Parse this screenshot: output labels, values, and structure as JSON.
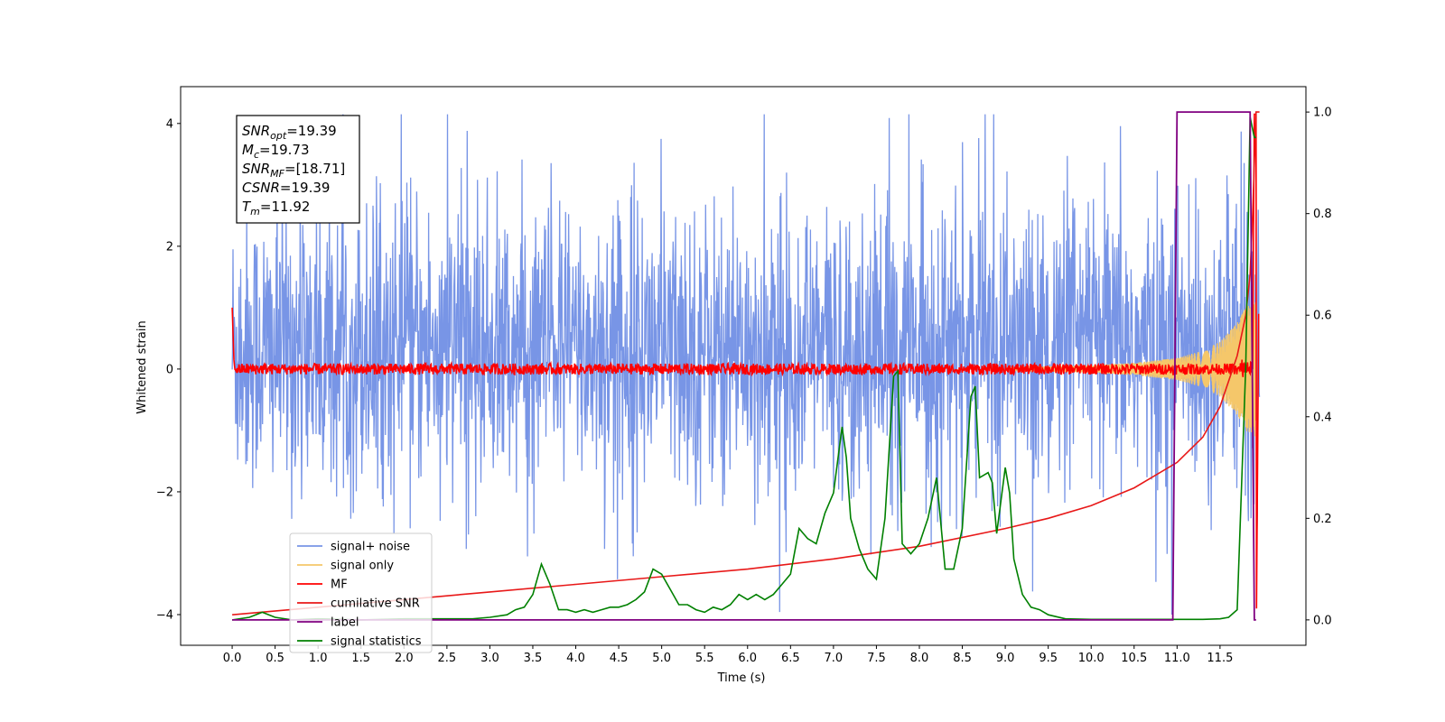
{
  "chart_data": {
    "type": "line",
    "title": "",
    "xlabel": "Time (s)",
    "ylabel": "Whitened strain",
    "xlim": [
      -0.6,
      12.5
    ],
    "ylim": [
      -4.5,
      4.6
    ],
    "y2lim": [
      -0.05,
      1.05
    ],
    "grid": false,
    "legend_position": "lower-left",
    "x_ticks": [
      "0.0",
      "0.5",
      "1.0",
      "1.5",
      "2.0",
      "2.5",
      "3.0",
      "3.5",
      "4.0",
      "4.5",
      "5.0",
      "5.5",
      "6.0",
      "6.5",
      "7.0",
      "7.5",
      "8.0",
      "8.5",
      "9.0",
      "9.5",
      "10.0",
      "10.5",
      "11.0",
      "11.5"
    ],
    "y_ticks": [
      "4",
      "2",
      "0",
      "−2",
      "−4"
    ],
    "y2_ticks": [
      "1.0",
      "0.8",
      "0.6",
      "0.4",
      "0.2",
      "0.0"
    ],
    "colors": {
      "noise": "#7895e6",
      "signal": "#f5c76a",
      "mf": "#ff0000",
      "csnr": "#e81818",
      "label": "#800080",
      "stats": "#008000"
    },
    "annotation": [
      {
        "base": "SNR",
        "sub": "opt",
        "value": "=19.39"
      },
      {
        "base": "M",
        "sub": "c",
        "value": "=19.73"
      },
      {
        "base": "SNR",
        "sub": "MF",
        "value": "=[18.71]"
      },
      {
        "base": "CSNR",
        "sub": "",
        "value": "=19.39"
      },
      {
        "base": "T",
        "sub": "m",
        "value": "=11.92"
      }
    ],
    "legend": [
      "signal+ noise",
      "signal only",
      "MF",
      "cumilative SNR",
      "label",
      "signal statistics"
    ],
    "series": {
      "label": {
        "name": "label",
        "axis": "right",
        "x": [
          0.0,
          10.95,
          11.0,
          11.85,
          11.9,
          11.92
        ],
        "y": [
          0.0,
          0.0,
          1.0,
          1.0,
          0.0,
          0.0
        ]
      },
      "cumulative_snr": {
        "name": "cumilative SNR",
        "axis": "right",
        "x": [
          0.0,
          1.0,
          2.0,
          3.0,
          4.0,
          5.0,
          6.0,
          7.0,
          8.0,
          9.0,
          9.5,
          10.0,
          10.5,
          11.0,
          11.3,
          11.5,
          11.7,
          11.8,
          11.85,
          11.88,
          11.92,
          11.96
        ],
        "y": [
          0.01,
          0.025,
          0.04,
          0.055,
          0.07,
          0.085,
          0.1,
          0.12,
          0.145,
          0.18,
          0.2,
          0.225,
          0.26,
          0.31,
          0.36,
          0.42,
          0.52,
          0.6,
          0.68,
          0.8,
          1.0,
          1.0
        ]
      },
      "signal_statistics": {
        "name": "signal statistics",
        "axis": "right",
        "x": [
          0.0,
          0.2,
          0.35,
          0.5,
          0.7,
          1.0,
          1.5,
          2.0,
          2.5,
          2.8,
          3.0,
          3.2,
          3.3,
          3.4,
          3.5,
          3.6,
          3.7,
          3.8,
          3.9,
          4.0,
          4.1,
          4.2,
          4.3,
          4.4,
          4.5,
          4.6,
          4.7,
          4.8,
          4.9,
          5.0,
          5.1,
          5.2,
          5.3,
          5.4,
          5.5,
          5.6,
          5.7,
          5.8,
          5.9,
          6.0,
          6.1,
          6.2,
          6.3,
          6.4,
          6.5,
          6.6,
          6.7,
          6.8,
          6.9,
          7.0,
          7.1,
          7.15,
          7.2,
          7.3,
          7.4,
          7.5,
          7.6,
          7.7,
          7.75,
          7.8,
          7.9,
          8.0,
          8.1,
          8.2,
          8.3,
          8.4,
          8.5,
          8.6,
          8.65,
          8.7,
          8.8,
          8.85,
          8.9,
          9.0,
          9.05,
          9.1,
          9.2,
          9.3,
          9.4,
          9.5,
          9.7,
          10.0,
          10.5,
          11.0,
          11.3,
          11.5,
          11.6,
          11.7,
          11.8,
          11.85,
          11.9,
          11.92
        ],
        "y": [
          0.0,
          0.005,
          0.015,
          0.005,
          0.0,
          0.002,
          0.0,
          0.002,
          0.002,
          0.002,
          0.005,
          0.01,
          0.02,
          0.025,
          0.05,
          0.11,
          0.07,
          0.02,
          0.02,
          0.015,
          0.02,
          0.015,
          0.02,
          0.025,
          0.025,
          0.03,
          0.04,
          0.055,
          0.1,
          0.09,
          0.06,
          0.03,
          0.03,
          0.02,
          0.015,
          0.025,
          0.02,
          0.03,
          0.05,
          0.04,
          0.05,
          0.04,
          0.05,
          0.07,
          0.09,
          0.18,
          0.16,
          0.15,
          0.21,
          0.25,
          0.38,
          0.32,
          0.2,
          0.14,
          0.1,
          0.08,
          0.2,
          0.48,
          0.49,
          0.15,
          0.13,
          0.15,
          0.2,
          0.28,
          0.1,
          0.1,
          0.18,
          0.44,
          0.46,
          0.28,
          0.29,
          0.27,
          0.17,
          0.3,
          0.25,
          0.12,
          0.05,
          0.025,
          0.02,
          0.01,
          0.002,
          0.001,
          0.001,
          0.001,
          0.001,
          0.002,
          0.005,
          0.02,
          0.5,
          0.99,
          0.95,
          0.95
        ]
      },
      "matched_filter": {
        "name": "MF",
        "axis": "left",
        "start_value": 1.0,
        "baseline": 0.0,
        "final_segment": {
          "x": [
            11.88,
            11.9,
            11.92
          ],
          "y": [
            0.0,
            4.15,
            4.15
          ]
        }
      },
      "signal_only": {
        "name": "signal only",
        "axis": "left",
        "envelope": {
          "x": [
            0.0,
            9.0,
            10.0,
            10.5,
            11.0,
            11.3,
            11.5,
            11.7,
            11.8,
            11.9
          ],
          "y": [
            0.0,
            0.02,
            0.06,
            0.1,
            0.18,
            0.3,
            0.45,
            0.75,
            1.0,
            1.1
          ]
        }
      },
      "signal_plus_noise": {
        "name": "signal+ noise",
        "axis": "left",
        "range": [
          -4.0,
          4.15
        ]
      }
    }
  }
}
